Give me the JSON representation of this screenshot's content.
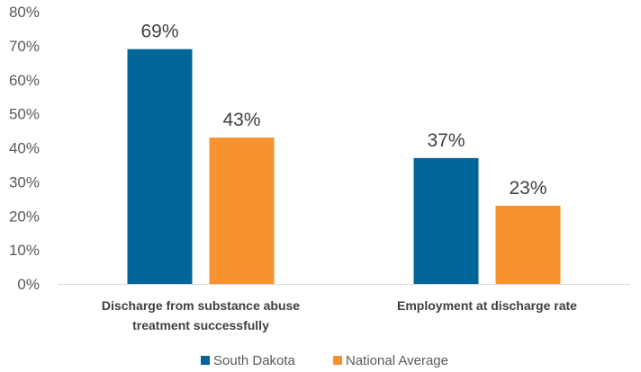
{
  "chart_data": {
    "type": "bar",
    "categories": [
      [
        "Discharge from substance abuse",
        "treatment successfully"
      ],
      [
        "Employment at discharge rate"
      ]
    ],
    "series": [
      {
        "name": "South Dakota",
        "color": "#006699",
        "values": [
          69,
          37
        ],
        "labels": [
          "69%",
          "37%"
        ]
      },
      {
        "name": "National Average",
        "color": "#F7922E",
        "values": [
          43,
          23
        ],
        "labels": [
          "43%",
          "23%"
        ]
      }
    ],
    "ylim": [
      0,
      80
    ],
    "yticks": [
      0,
      10,
      20,
      30,
      40,
      50,
      60,
      70,
      80
    ],
    "ytick_labels": [
      "0%",
      "10%",
      "20%",
      "30%",
      "40%",
      "50%",
      "60%",
      "70%",
      "80%"
    ],
    "grid": false,
    "legend_position": "bottom"
  }
}
